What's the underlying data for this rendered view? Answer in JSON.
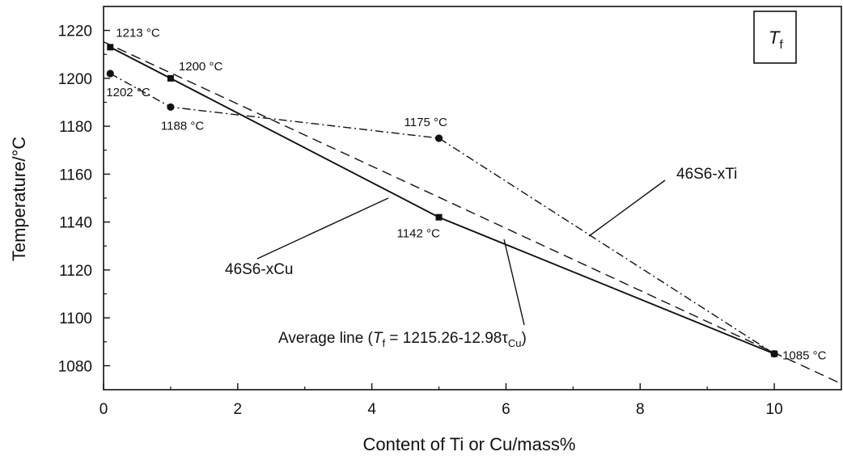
{
  "chart_data": {
    "type": "line",
    "title": "",
    "badge": {
      "symbol": "T",
      "subscript": "f"
    },
    "xlabel": "Content of Ti or Cu/mass%",
    "ylabel": "Temperature/°C",
    "xlim": [
      0,
      11
    ],
    "ylim": [
      1070,
      1230
    ],
    "x_ticks": [
      0,
      2,
      4,
      6,
      8,
      10
    ],
    "x_tick_labels": [
      "0",
      "2",
      "4",
      "6",
      "8",
      "10"
    ],
    "y_ticks": [
      1080,
      1100,
      1120,
      1140,
      1160,
      1180,
      1200,
      1220
    ],
    "y_tick_labels": [
      "1080",
      "1100",
      "1120",
      "1140",
      "1160",
      "1180",
      "1200",
      "1220"
    ],
    "grid": false,
    "series": [
      {
        "name": "46S6-xCu",
        "style": "solid",
        "marker": "square",
        "x": [
          0.1,
          1,
          5,
          10
        ],
        "y": [
          1213,
          1200,
          1142,
          1085
        ],
        "labels": [
          "1213 °C",
          "1200 °C",
          "1142 °C",
          "1085 °C"
        ]
      },
      {
        "name": "46S6-xTi",
        "style": "dash-dot",
        "marker": "circle",
        "x": [
          0.1,
          1,
          5,
          10
        ],
        "y": [
          1202,
          1188,
          1175,
          1085
        ],
        "labels": [
          "1202 °C",
          "1188 °C",
          "1175 °C",
          ""
        ]
      },
      {
        "name": "Average line",
        "style": "dashed",
        "marker": "none",
        "x": [
          0,
          11
        ],
        "y": [
          1215.26,
          1072.48
        ]
      }
    ],
    "average_line_label": {
      "prefix": "Average line (",
      "sym": "T",
      "sym_sub": "f",
      "eq": " = 1215.26-12.98τ",
      "eq_sub": "Cu",
      "suffix": ")"
    },
    "colors": {
      "ink": "#111111",
      "background": "#ffffff"
    }
  }
}
